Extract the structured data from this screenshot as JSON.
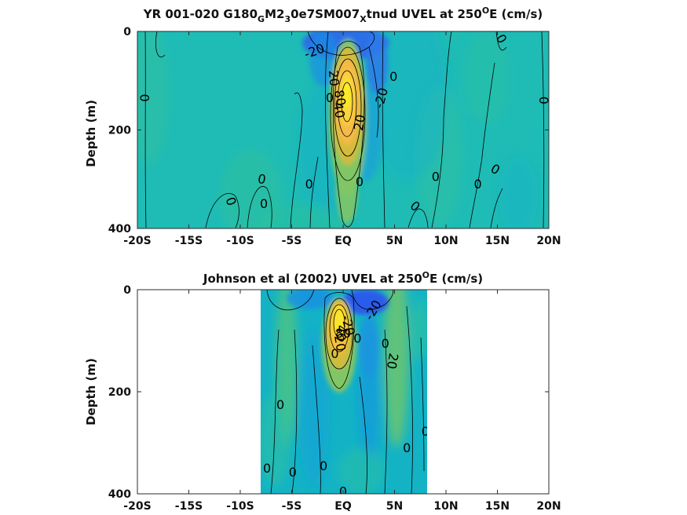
{
  "chart_data": [
    {
      "type": "heatmap",
      "title": {
        "pre": "YR 001-020 G180",
        "s1": "G",
        "m1": "M2",
        "s2": "3",
        "m2": "0e7SM007",
        "s3": "X",
        "m3": "tnud UVEL at 250",
        "sup": "O",
        "post": "E (cm/s)"
      },
      "ylabel": "Depth (m)",
      "xlim": [
        -20,
        20
      ],
      "ylim": [
        0,
        400
      ],
      "y_reversed": true,
      "x_ticks": [
        -20,
        -15,
        -10,
        -5,
        0,
        5,
        10,
        15,
        20
      ],
      "x_tick_labels": [
        "-20S",
        "-15S",
        "-10S",
        "-5S",
        "EQ",
        "5N",
        "10N",
        "15N",
        "20N"
      ],
      "y_ticks": [
        0,
        200,
        400
      ],
      "y_tick_labels": [
        "0",
        "200",
        "400"
      ],
      "data_extent": {
        "x": [
          -20,
          20
        ],
        "depth": [
          0,
          385
        ]
      },
      "features": [
        {
          "kind": "core",
          "x": 0.4,
          "depth": 110,
          "value": 90
        },
        {
          "kind": "westward_surface",
          "x": 0.5,
          "depth": 10,
          "value": -30
        }
      ],
      "contour_labels": [
        {
          "text": "-20",
          "x": -2.8,
          "depth": 40,
          "rotate": -20
        },
        {
          "text": "20",
          "x": -0.9,
          "depth": 95,
          "rotate": 85
        },
        {
          "text": "0",
          "x": 4.9,
          "depth": 92,
          "rotate": 0
        },
        {
          "text": "-20",
          "x": 3.7,
          "depth": 135,
          "rotate": -75
        },
        {
          "text": "0",
          "x": -1.3,
          "depth": 135,
          "rotate": 0
        },
        {
          "text": "80",
          "x": -0.3,
          "depth": 135,
          "rotate": 80
        },
        {
          "text": "40",
          "x": -0.4,
          "depth": 160,
          "rotate": 80
        },
        {
          "text": "20",
          "x": 1.6,
          "depth": 185,
          "rotate": -80
        },
        {
          "text": "0",
          "x": -19.3,
          "depth": 135,
          "rotate": 90
        },
        {
          "text": "0",
          "x": 19.5,
          "depth": 140,
          "rotate": 90
        },
        {
          "text": "0",
          "x": 15.4,
          "depth": 15,
          "rotate": 60
        },
        {
          "text": "0",
          "x": -7.9,
          "depth": 300,
          "rotate": 10
        },
        {
          "text": "0",
          "x": -3.3,
          "depth": 310,
          "rotate": 0
        },
        {
          "text": "0",
          "x": -10.9,
          "depth": 345,
          "rotate": 70
        },
        {
          "text": "0",
          "x": -7.7,
          "depth": 350,
          "rotate": 0
        },
        {
          "text": "0",
          "x": 1.6,
          "depth": 305,
          "rotate": 0
        },
        {
          "text": "0",
          "x": 7.0,
          "depth": 355,
          "rotate": 40
        },
        {
          "text": "0",
          "x": 9.0,
          "depth": 295,
          "rotate": 0
        },
        {
          "text": "0",
          "x": 13.1,
          "depth": 310,
          "rotate": 0
        },
        {
          "text": "0",
          "x": 14.8,
          "depth": 280,
          "rotate": 30
        }
      ]
    },
    {
      "type": "heatmap",
      "title": {
        "pre": "Johnson et al (2002) UVEL at 250",
        "sup": "O",
        "post": "E (cm/s)"
      },
      "ylabel": "Depth (m)",
      "xlim": [
        -20,
        20
      ],
      "ylim": [
        0,
        400
      ],
      "y_reversed": true,
      "x_ticks": [
        -20,
        -15,
        -10,
        -5,
        0,
        5,
        10,
        15,
        20
      ],
      "x_tick_labels": [
        "-20S",
        "-15S",
        "-10S",
        "-5S",
        "EQ",
        "5N",
        "10N",
        "15N",
        "20N"
      ],
      "y_ticks": [
        0,
        200,
        400
      ],
      "y_tick_labels": [
        "0",
        "200",
        "400"
      ],
      "data_extent": {
        "x": [
          -8,
          8.3
        ],
        "depth": [
          0,
          400
        ]
      },
      "features": [
        {
          "kind": "core",
          "x": 0.0,
          "depth": 75,
          "value": 85
        },
        {
          "kind": "westward_surface",
          "x": 1.0,
          "depth": 5,
          "value": -30
        }
      ],
      "contour_labels": [
        {
          "text": "-20",
          "x": 2.9,
          "depth": 40,
          "rotate": -60
        },
        {
          "text": "-20",
          "x": 0.5,
          "depth": 70,
          "rotate": 75
        },
        {
          "text": "40",
          "x": -0.2,
          "depth": 85,
          "rotate": 90
        },
        {
          "text": "80",
          "x": 0.0,
          "depth": 85,
          "rotate": 0
        },
        {
          "text": "20",
          "x": -0.3,
          "depth": 105,
          "rotate": 80
        },
        {
          "text": "0",
          "x": -0.8,
          "depth": 125,
          "rotate": 0
        },
        {
          "text": "0",
          "x": 1.4,
          "depth": 95,
          "rotate": 0
        },
        {
          "text": "0",
          "x": 4.1,
          "depth": 105,
          "rotate": 0
        },
        {
          "text": "20",
          "x": 4.8,
          "depth": 140,
          "rotate": 100
        },
        {
          "text": "0",
          "x": -6.1,
          "depth": 225,
          "rotate": 0
        },
        {
          "text": "0",
          "x": 8.0,
          "depth": 278,
          "rotate": 0
        },
        {
          "text": "0",
          "x": 6.2,
          "depth": 310,
          "rotate": 0
        },
        {
          "text": "0",
          "x": -7.4,
          "depth": 350,
          "rotate": 0
        },
        {
          "text": "0",
          "x": -4.9,
          "depth": 358,
          "rotate": 0
        },
        {
          "text": "0",
          "x": -1.9,
          "depth": 345,
          "rotate": 0
        },
        {
          "text": "0",
          "x": 0.0,
          "depth": 395,
          "rotate": 0
        }
      ]
    }
  ],
  "colormap": {
    "name": "parula",
    "range": [
      -40,
      100
    ],
    "stops": [
      "#3e26a8",
      "#2f4cf1",
      "#1a8fe4",
      "#13b3c5",
      "#2dbfa3",
      "#81c665",
      "#d3bb3a",
      "#fbc33a",
      "#f9fb15"
    ],
    "zero_color": "#1fbcb6"
  }
}
